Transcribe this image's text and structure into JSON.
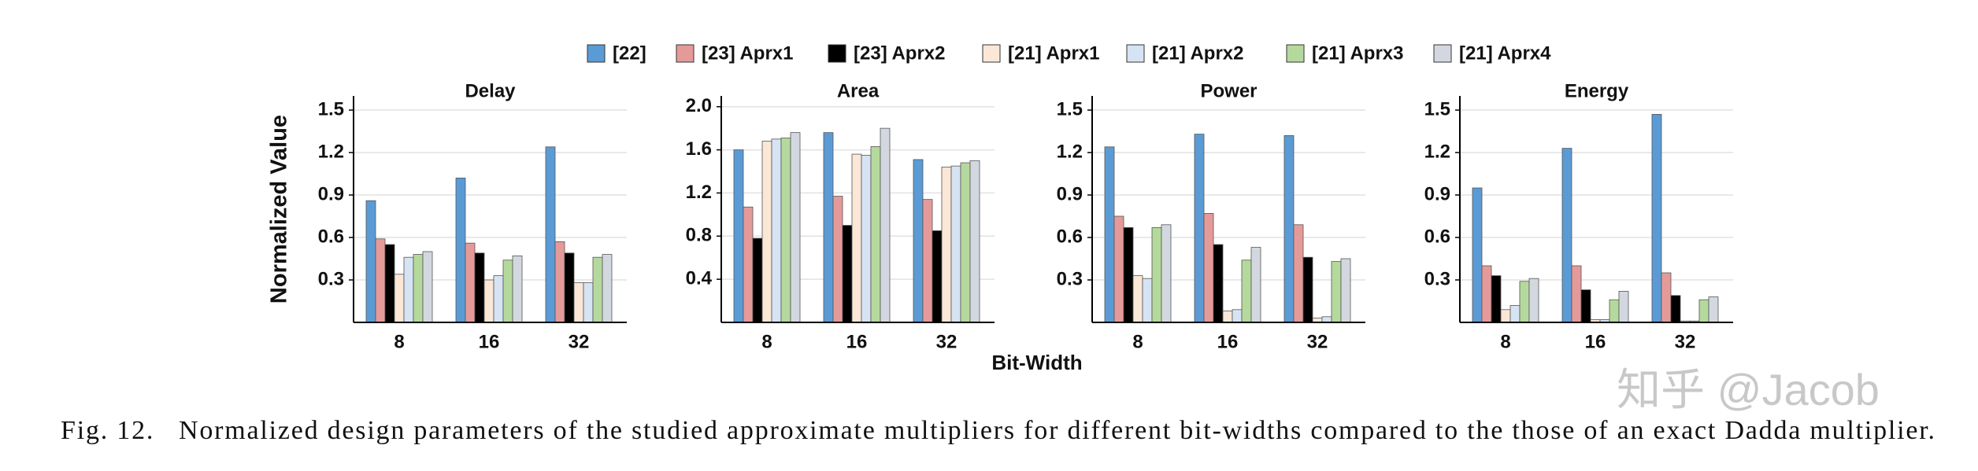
{
  "chart_data": [
    {
      "type": "bar",
      "title": "Delay",
      "y_label": "Normalized Value",
      "categories": [
        "8",
        "16",
        "32"
      ],
      "ylim": [
        0,
        1.6
      ],
      "yticks": [
        0.3,
        0.6,
        0.9,
        1.2,
        1.5
      ],
      "grid": true,
      "series": [
        {
          "name": "[22]",
          "color": "#5b9bd5",
          "values": [
            0.86,
            1.02,
            1.24
          ]
        },
        {
          "name": "[23] Aprx1",
          "color": "#e59a9a",
          "values": [
            0.59,
            0.56,
            0.57
          ]
        },
        {
          "name": "[23] Aprx2",
          "color": "#000000",
          "values": [
            0.55,
            0.49,
            0.49
          ]
        },
        {
          "name": "[21] Aprx1",
          "color": "#fbe7d6",
          "values": [
            0.34,
            0.3,
            0.28
          ]
        },
        {
          "name": "[21] Aprx2",
          "color": "#d6e3f3",
          "values": [
            0.46,
            0.33,
            0.28
          ]
        },
        {
          "name": "[21] Aprx3",
          "color": "#b5d99c",
          "values": [
            0.48,
            0.44,
            0.46
          ]
        },
        {
          "name": "[21] Aprx4",
          "color": "#d3d8e0",
          "values": [
            0.5,
            0.47,
            0.48
          ]
        }
      ]
    },
    {
      "type": "bar",
      "title": "Area",
      "categories": [
        "8",
        "16",
        "32"
      ],
      "ylim": [
        0,
        2.1
      ],
      "yticks": [
        0.4,
        0.8,
        1.2,
        1.6,
        {
          "value": 2,
          "label": "2.0"
        }
      ],
      "grid": true,
      "series": [
        {
          "name": "[22]",
          "color": "#5b9bd5",
          "values": [
            1.6,
            1.76,
            1.51
          ]
        },
        {
          "name": "[23] Aprx1",
          "color": "#e59a9a",
          "values": [
            1.07,
            1.17,
            1.14
          ]
        },
        {
          "name": "[23] Aprx2",
          "color": "#000000",
          "values": [
            0.78,
            0.9,
            0.85
          ]
        },
        {
          "name": "[21] Aprx1",
          "color": "#fbe7d6",
          "values": [
            1.68,
            1.56,
            1.44
          ]
        },
        {
          "name": "[21] Aprx2",
          "color": "#d6e3f3",
          "values": [
            1.7,
            1.55,
            1.45
          ]
        },
        {
          "name": "[21] Aprx3",
          "color": "#b5d99c",
          "values": [
            1.71,
            1.63,
            1.48
          ]
        },
        {
          "name": "[21] Aprx4",
          "color": "#d3d8e0",
          "values": [
            1.76,
            1.8,
            1.5
          ]
        }
      ]
    },
    {
      "type": "bar",
      "title": "Power",
      "categories": [
        "8",
        "16",
        "32"
      ],
      "ylim": [
        0,
        1.6
      ],
      "yticks": [
        0.3,
        0.6,
        0.9,
        1.2,
        1.5
      ],
      "grid": true,
      "series": [
        {
          "name": "[22]",
          "color": "#5b9bd5",
          "values": [
            1.24,
            1.33,
            1.32
          ]
        },
        {
          "name": "[23] Aprx1",
          "color": "#e59a9a",
          "values": [
            0.75,
            0.77,
            0.69
          ]
        },
        {
          "name": "[23] Aprx2",
          "color": "#000000",
          "values": [
            0.67,
            0.55,
            0.46
          ]
        },
        {
          "name": "[21] Aprx1",
          "color": "#fbe7d6",
          "values": [
            0.33,
            0.08,
            0.03
          ]
        },
        {
          "name": "[21] Aprx2",
          "color": "#d6e3f3",
          "values": [
            0.31,
            0.09,
            0.04
          ]
        },
        {
          "name": "[21] Aprx3",
          "color": "#b5d99c",
          "values": [
            0.67,
            0.44,
            0.43
          ]
        },
        {
          "name": "[21] Aprx4",
          "color": "#d3d8e0",
          "values": [
            0.69,
            0.53,
            0.45
          ]
        }
      ]
    },
    {
      "type": "bar",
      "title": "Energy",
      "categories": [
        "8",
        "16",
        "32"
      ],
      "ylim": [
        0,
        1.6
      ],
      "yticks": [
        0.3,
        0.6,
        0.9,
        1.2,
        1.5
      ],
      "grid": true,
      "series": [
        {
          "name": "[22]",
          "color": "#5b9bd5",
          "values": [
            0.95,
            1.23,
            1.47
          ]
        },
        {
          "name": "[23] Aprx1",
          "color": "#e59a9a",
          "values": [
            0.4,
            0.4,
            0.35
          ]
        },
        {
          "name": "[23] Aprx2",
          "color": "#000000",
          "values": [
            0.33,
            0.23,
            0.19
          ]
        },
        {
          "name": "[21] Aprx1",
          "color": "#fbe7d6",
          "values": [
            0.09,
            0.02,
            0.01
          ]
        },
        {
          "name": "[21] Aprx2",
          "color": "#d6e3f3",
          "values": [
            0.12,
            0.02,
            0.01
          ]
        },
        {
          "name": "[21] Aprx3",
          "color": "#b5d99c",
          "values": [
            0.29,
            0.16,
            0.16
          ]
        },
        {
          "name": "[21] Aprx4",
          "color": "#d3d8e0",
          "values": [
            0.31,
            0.22,
            0.18
          ]
        }
      ]
    }
  ],
  "x_label": "Bit-Width",
  "watermark": "知乎 @Jacob",
  "caption": "Fig. 12.   Normalized design parameters of the studied approximate multipliers for different bit-widths compared to the those of an exact Dadda multiplier."
}
